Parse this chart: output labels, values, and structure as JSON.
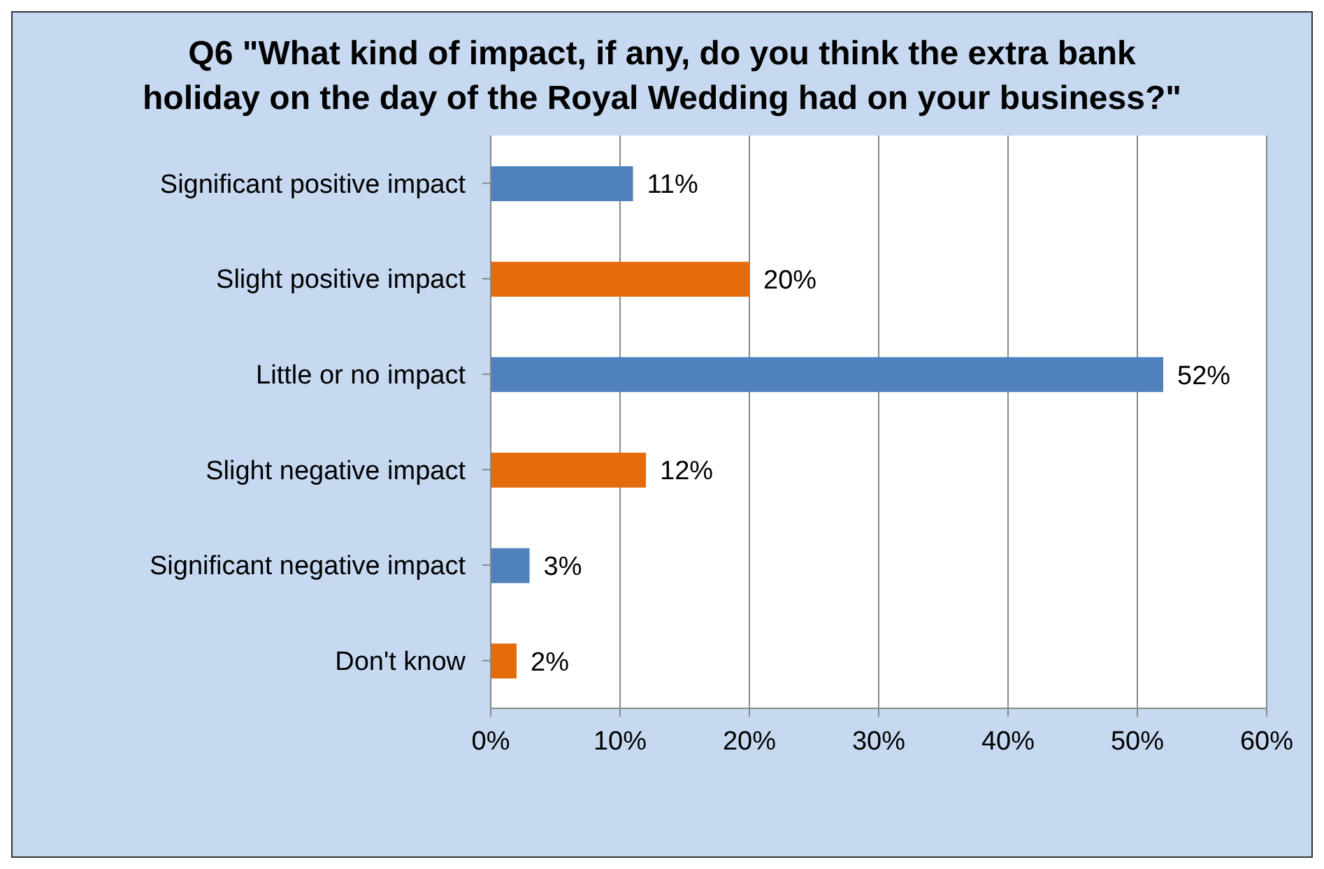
{
  "chart_data": {
    "type": "bar",
    "orientation": "horizontal",
    "title": "Q6 \"What kind of impact, if any, do you think the extra bank holiday on the day of the Royal Wedding had on your business?\"",
    "categories": [
      "Significant positive impact",
      "Slight positive impact",
      "Little or no impact",
      "Slight negative impact",
      "Significant negative impact",
      "Don't know"
    ],
    "values": [
      11,
      20,
      52,
      12,
      3,
      2
    ],
    "colors": [
      "#4f81bd",
      "#e46c0a",
      "#4f81bd",
      "#e46c0a",
      "#4f81bd",
      "#e46c0a"
    ],
    "value_labels": [
      "11%",
      "20%",
      "52%",
      "12%",
      "3%",
      "2%"
    ],
    "xlim": [
      0,
      60
    ],
    "xticks": [
      {
        "value": 0,
        "label": "0%"
      },
      {
        "value": 10,
        "label": "10%"
      },
      {
        "value": 20,
        "label": "20%"
      },
      {
        "value": 30,
        "label": "30%"
      },
      {
        "value": 40,
        "label": "40%"
      },
      {
        "value": 50,
        "label": "50%"
      },
      {
        "value": 60,
        "label": "60%"
      }
    ],
    "grid": "x",
    "legend": false
  }
}
